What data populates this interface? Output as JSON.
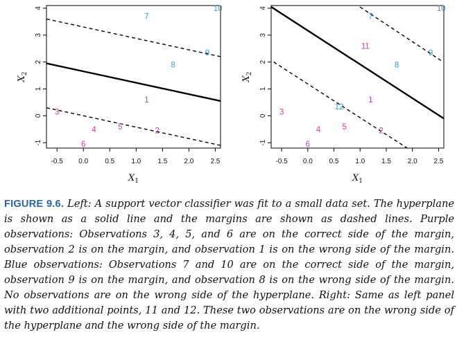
{
  "colors": {
    "purple": "#c2449a",
    "blue": "#3a9bd1",
    "line": "#000000",
    "caption_label": "#2a63a8"
  },
  "chart_data": [
    {
      "type": "scatter",
      "panel": "left",
      "xlabel": "X1",
      "ylabel": "X2",
      "xlim": [
        -0.7,
        2.6
      ],
      "ylim": [
        -1.2,
        4.1
      ],
      "x_ticks": [
        -0.5,
        0.0,
        0.5,
        1.0,
        1.5,
        2.0,
        2.5
      ],
      "x_tick_labels": [
        "-0.5",
        "0.0",
        "0.5",
        "1.0",
        "1.5",
        "2.0",
        "2.5"
      ],
      "y_ticks": [
        -1,
        0,
        1,
        2,
        3,
        4
      ],
      "y_tick_labels": [
        "-1",
        "0",
        "1",
        "2",
        "3",
        "4"
      ],
      "points": [
        {
          "label": "1",
          "x": 1.2,
          "y": 0.6,
          "class": "purple"
        },
        {
          "label": "2",
          "x": 1.4,
          "y": -0.55,
          "class": "purple"
        },
        {
          "label": "3",
          "x": -0.5,
          "y": 0.15,
          "class": "purple"
        },
        {
          "label": "4",
          "x": 0.2,
          "y": -0.5,
          "class": "purple"
        },
        {
          "label": "5",
          "x": 0.7,
          "y": -0.4,
          "class": "purple"
        },
        {
          "label": "6",
          "x": 0.0,
          "y": -1.05,
          "class": "purple"
        },
        {
          "label": "7",
          "x": 1.2,
          "y": 3.7,
          "class": "blue"
        },
        {
          "label": "8",
          "x": 1.7,
          "y": 1.9,
          "class": "blue"
        },
        {
          "label": "9",
          "x": 2.35,
          "y": 2.35,
          "class": "blue"
        },
        {
          "label": "10",
          "x": 2.55,
          "y": 4.0,
          "class": "blue"
        }
      ],
      "lines": [
        {
          "role": "hyperplane",
          "style": "solid",
          "x": [
            -0.7,
            2.6
          ],
          "y": [
            1.95,
            0.55
          ]
        },
        {
          "role": "upper-margin",
          "style": "dashed",
          "x": [
            -0.7,
            2.6
          ],
          "y": [
            3.6,
            2.2
          ]
        },
        {
          "role": "lower-margin",
          "style": "dashed",
          "x": [
            -0.7,
            2.6
          ],
          "y": [
            0.3,
            -1.1
          ]
        }
      ]
    },
    {
      "type": "scatter",
      "panel": "right",
      "xlabel": "X1",
      "ylabel": "X2",
      "xlim": [
        -0.7,
        2.6
      ],
      "ylim": [
        -1.2,
        4.1
      ],
      "x_ticks": [
        -0.5,
        0.0,
        0.5,
        1.0,
        1.5,
        2.0,
        2.5
      ],
      "x_tick_labels": [
        "-0.5",
        "0.0",
        "0.5",
        "1.0",
        "1.5",
        "2.0",
        "2.5"
      ],
      "y_ticks": [
        -1,
        0,
        1,
        2,
        3,
        4
      ],
      "y_tick_labels": [
        "-1",
        "0",
        "1",
        "2",
        "3",
        "4"
      ],
      "points": [
        {
          "label": "1",
          "x": 1.2,
          "y": 0.6,
          "class": "purple"
        },
        {
          "label": "2",
          "x": 1.4,
          "y": -0.55,
          "class": "purple"
        },
        {
          "label": "3",
          "x": -0.5,
          "y": 0.15,
          "class": "purple"
        },
        {
          "label": "4",
          "x": 0.2,
          "y": -0.5,
          "class": "purple"
        },
        {
          "label": "5",
          "x": 0.7,
          "y": -0.4,
          "class": "purple"
        },
        {
          "label": "6",
          "x": 0.0,
          "y": -1.05,
          "class": "purple"
        },
        {
          "label": "11",
          "x": 1.1,
          "y": 2.6,
          "class": "purple"
        },
        {
          "label": "7",
          "x": 1.2,
          "y": 3.7,
          "class": "blue"
        },
        {
          "label": "8",
          "x": 1.7,
          "y": 1.9,
          "class": "blue"
        },
        {
          "label": "9",
          "x": 2.35,
          "y": 2.35,
          "class": "blue"
        },
        {
          "label": "10",
          "x": 2.55,
          "y": 4.0,
          "class": "blue"
        },
        {
          "label": "12",
          "x": 0.6,
          "y": 0.35,
          "class": "blue"
        }
      ],
      "lines": [
        {
          "role": "hyperplane",
          "style": "solid",
          "x": [
            -0.7,
            2.6
          ],
          "y": [
            4.05,
            -0.1
          ]
        },
        {
          "role": "upper-margin",
          "style": "dashed",
          "x": [
            0.8,
            2.55
          ],
          "y": [
            4.3,
            2.05
          ]
        },
        {
          "role": "lower-margin",
          "style": "dashed",
          "x": [
            -0.65,
            1.9
          ],
          "y": [
            2.0,
            -1.2
          ]
        }
      ]
    }
  ],
  "caption": {
    "label": "FIGURE 9.6.",
    "text": "Left: A support vector classifier was fit to a small data set. The hyperplane is shown as a solid line and the margins are shown as dashed lines. Purple observations: Observations 3, 4, 5, and 6 are on the correct side of the margin, observation 2 is on the margin, and observation 1 is on the wrong side of the margin. Blue observations: Observations 7 and 10 are on the correct side of the margin, observation 9 is on the margin, and observation 8 is on the wrong side of the margin. No observations are on the wrong side of the hyperplane. Right: Same as left panel with two additional points, 11 and 12. These two observations are on the wrong side of the hyperplane and the wrong side of the margin."
  }
}
